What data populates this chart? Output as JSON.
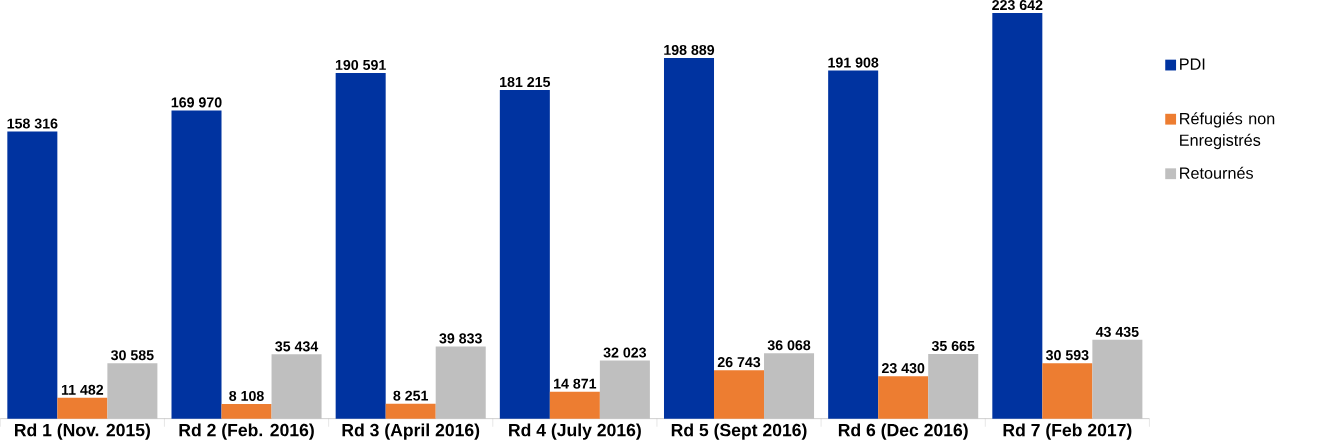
{
  "chart_data": {
    "type": "bar",
    "categories": [
      "Rd 1 (Nov. 2015)",
      "Rd 2 (Feb. 2016)",
      "Rd 3 (April 2016)",
      "Rd 4 (July 2016)",
      "Rd 5 (Sept 2016)",
      "Rd 6 (Dec 2016)",
      "Rd 7 (Feb 2017)"
    ],
    "series": [
      {
        "name": "PDI",
        "color": "#0033a0",
        "values": [
          158316,
          169970,
          190591,
          181215,
          198889,
          191908,
          223642
        ],
        "value_labels": [
          "158 316",
          "169 970",
          "190 591",
          "181 215",
          "198 889",
          "191 908",
          "223 642"
        ]
      },
      {
        "name": "Réfugiés non Enregistrés",
        "color": "#ed7d31",
        "values": [
          11482,
          8108,
          8251,
          14871,
          26743,
          23430,
          30593
        ],
        "value_labels": [
          "11 482",
          "8 108",
          "8 251",
          "14 871",
          "26 743",
          "23 430",
          "30 593"
        ]
      },
      {
        "name": "Retournés",
        "color": "#bfbfbf",
        "values": [
          30585,
          35434,
          39833,
          32023,
          36068,
          35665,
          43435
        ],
        "value_labels": [
          "30 585",
          "35 434",
          "39 833",
          "32 023",
          "36 068",
          "35 665",
          "43 435"
        ]
      }
    ],
    "legend": "right"
  }
}
